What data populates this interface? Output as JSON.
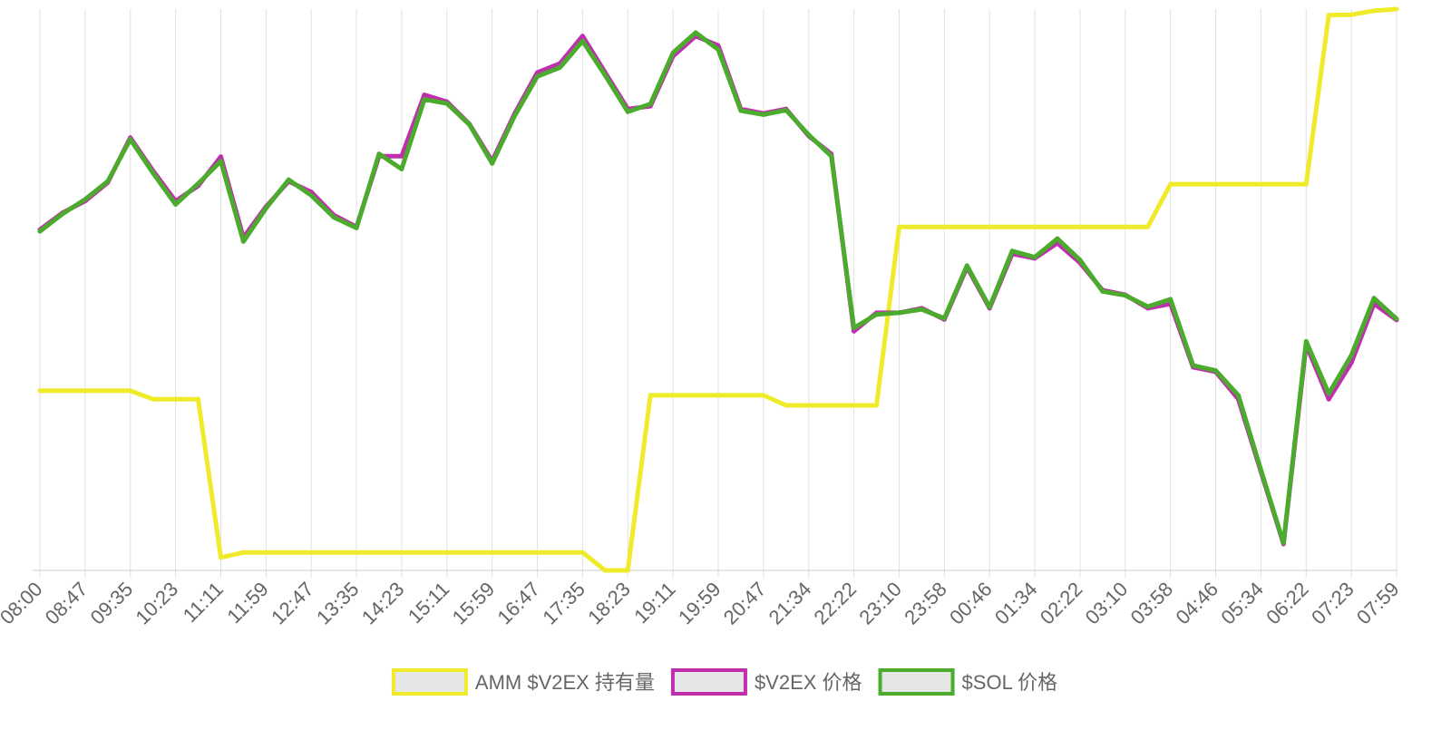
{
  "chart_data": {
    "type": "line",
    "categories": [
      "08:00",
      null,
      "08:47",
      null,
      "09:35",
      null,
      "10:23",
      null,
      "11:11",
      null,
      "11:59",
      null,
      "12:47",
      null,
      "13:35",
      null,
      "14:23",
      null,
      "15:11",
      null,
      "15:59",
      null,
      "16:47",
      null,
      "17:35",
      null,
      "18:23",
      null,
      "19:11",
      null,
      "19:59",
      null,
      "20:47",
      null,
      "21:34",
      null,
      "22:22",
      null,
      "23:10",
      null,
      "23:58",
      null,
      "00:46",
      null,
      "01:34",
      null,
      "02:22",
      null,
      "03:10",
      null,
      "03:58",
      null,
      "04:46",
      null,
      "05:34",
      null,
      "06:22",
      null,
      "07:23",
      null,
      "07:59"
    ],
    "ylim": [
      0,
      100
    ],
    "grid": true,
    "legend": "bottom",
    "series": [
      {
        "name": "AMM $V2EX 持有量",
        "color": "#f0eb2a",
        "values": [
          32,
          32,
          32,
          32,
          32,
          30.5,
          30.5,
          30.5,
          2.3,
          3.2,
          3.2,
          3.2,
          3.2,
          3.2,
          3.2,
          3.2,
          3.2,
          3.2,
          3.2,
          3.2,
          3.2,
          3.2,
          3.2,
          3.2,
          3.2,
          0,
          0,
          31.2,
          31.2,
          31.2,
          31.2,
          31.2,
          31.2,
          29.4,
          29.4,
          29.4,
          29.4,
          29.4,
          61.2,
          61.2,
          61.2,
          61.2,
          61.2,
          61.2,
          61.2,
          61.2,
          61.2,
          61.2,
          61.2,
          61.2,
          68.8,
          68.8,
          68.8,
          68.8,
          68.8,
          68.8,
          68.8,
          98.9,
          99,
          99.7,
          100
        ]
      },
      {
        "name": "$V2EX 价格",
        "color": "#c02fb0",
        "values": [
          60.7,
          63.7,
          65.8,
          69.1,
          77.1,
          71.2,
          65.8,
          68.5,
          73.7,
          59.3,
          64.8,
          69.3,
          67.4,
          63.3,
          61.2,
          73.8,
          73.8,
          84.7,
          83.5,
          79.5,
          72.9,
          81.4,
          88.7,
          90.3,
          95.2,
          88.7,
          82.2,
          82.7,
          91.6,
          95.2,
          93.5,
          82.2,
          81.4,
          82.2,
          77.4,
          74.2,
          42.6,
          45.9,
          45.9,
          46.7,
          44.7,
          54.0,
          46.7,
          56.4,
          55.6,
          58.3,
          54.8,
          49.9,
          49.1,
          46.7,
          47.5,
          36.2,
          35.4,
          30.5,
          17.6,
          4.7,
          40.2,
          30.5,
          37.0,
          47.5,
          44.6
        ]
      },
      {
        "name": "$SOL 价格",
        "color": "#4bab2c",
        "values": [
          60.4,
          63.5,
          66.1,
          69.3,
          76.8,
          70.8,
          65.2,
          68.9,
          72.9,
          58.6,
          64.5,
          69.6,
          66.8,
          62.9,
          61.0,
          74.2,
          71.5,
          83.9,
          83.2,
          79.4,
          72.5,
          81.0,
          88.0,
          89.6,
          94.3,
          88.2,
          81.7,
          83.1,
          92.2,
          95.8,
          92.8,
          81.9,
          81.2,
          82.0,
          77.6,
          73.8,
          43.2,
          45.6,
          45.9,
          46.5,
          44.9,
          54.3,
          46.9,
          56.9,
          55.8,
          59.1,
          55.3,
          49.7,
          49.0,
          47.0,
          48.3,
          36.5,
          35.6,
          31.2,
          17.9,
          4.9,
          40.8,
          31.5,
          38.3,
          48.5,
          44.8
        ]
      }
    ]
  }
}
